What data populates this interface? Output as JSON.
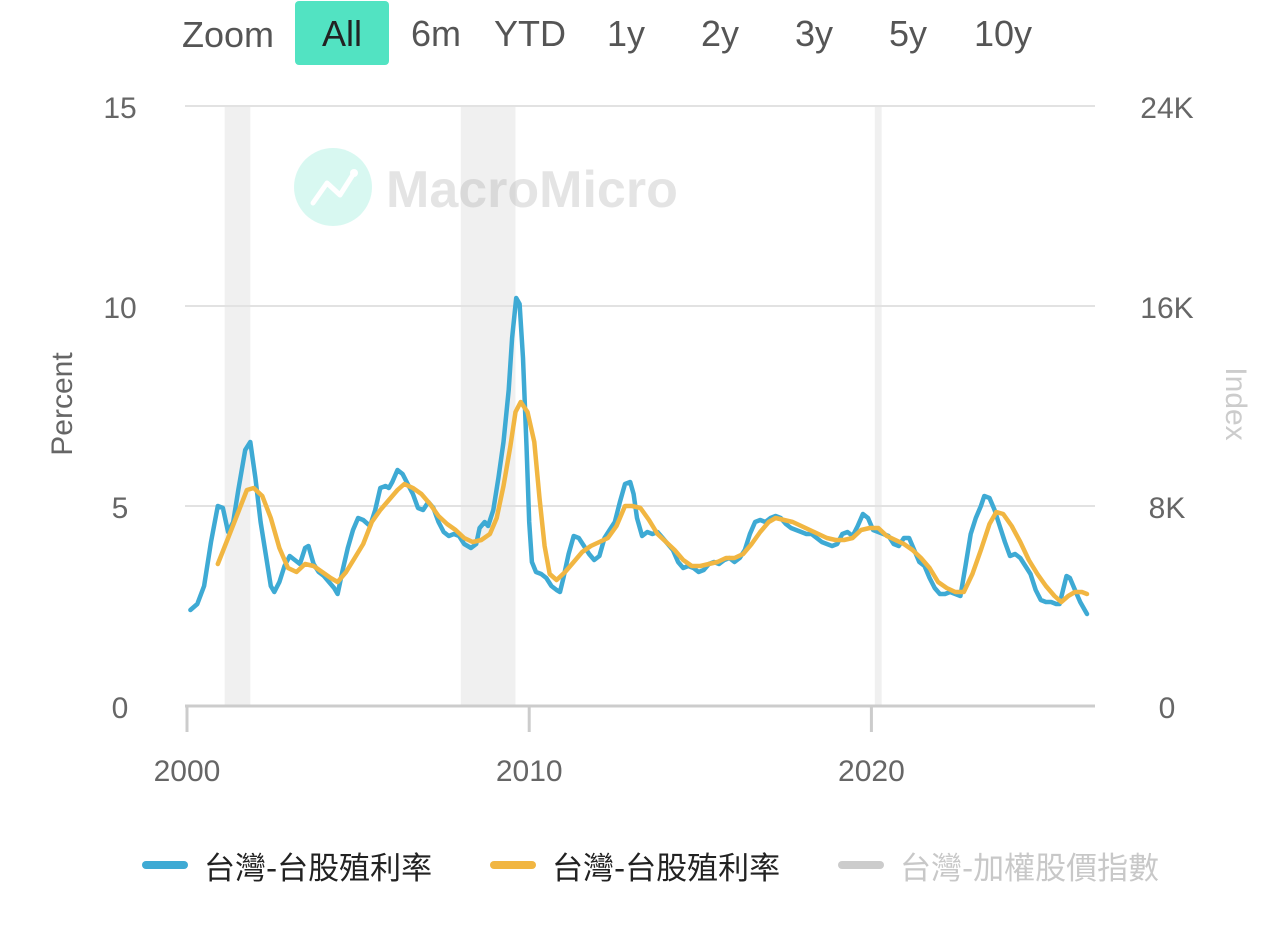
{
  "zoom": {
    "label": "Zoom",
    "buttons": [
      {
        "label": "All",
        "active": true
      },
      {
        "label": "6m",
        "active": false
      },
      {
        "label": "YTD",
        "active": false
      },
      {
        "label": "1y",
        "active": false
      },
      {
        "label": "2y",
        "active": false
      },
      {
        "label": "3y",
        "active": false
      },
      {
        "label": "5y",
        "active": false
      },
      {
        "label": "10y",
        "active": false
      }
    ]
  },
  "watermark": "MacroMicro",
  "colors": {
    "accent": "#52e3c2",
    "series_blue": "#3eaad4",
    "series_orange": "#f1b642",
    "series_grey": "#cccccc",
    "recession_band": "#f0f0f0",
    "grid": "#e2e2e2"
  },
  "chart_data": {
    "type": "line",
    "left_axis": {
      "label": "Percent",
      "ticks": [
        "0",
        "5",
        "10",
        "15"
      ],
      "range": [
        0,
        15
      ]
    },
    "right_axis": {
      "label": "Index",
      "ticks": [
        "0",
        "8K",
        "16K",
        "24K"
      ],
      "range": [
        0,
        24000
      ]
    },
    "x_axis": {
      "ticks": [
        "2000",
        "2010",
        "2020"
      ],
      "range": [
        2000.0,
        2026.3
      ]
    },
    "recession_bands": [
      [
        2001.1,
        2001.85
      ],
      [
        2008.0,
        2009.6
      ],
      [
        2020.1,
        2020.3
      ]
    ],
    "legend_placement": "bottom",
    "series": [
      {
        "name": "台灣-台股殖利率",
        "color": "#3eaad4",
        "visible": true,
        "points": [
          [
            2000.1,
            2.4
          ],
          [
            2000.3,
            2.55
          ],
          [
            2000.5,
            3.0
          ],
          [
            2000.7,
            4.1
          ],
          [
            2000.9,
            5.0
          ],
          [
            2001.05,
            4.95
          ],
          [
            2001.2,
            4.35
          ],
          [
            2001.35,
            4.6
          ],
          [
            2001.5,
            5.4
          ],
          [
            2001.7,
            6.4
          ],
          [
            2001.85,
            6.6
          ],
          [
            2002.0,
            5.7
          ],
          [
            2002.15,
            4.6
          ],
          [
            2002.3,
            3.8
          ],
          [
            2002.45,
            3.0
          ],
          [
            2002.55,
            2.85
          ],
          [
            2002.7,
            3.1
          ],
          [
            2002.85,
            3.5
          ],
          [
            2003.0,
            3.75
          ],
          [
            2003.15,
            3.65
          ],
          [
            2003.3,
            3.55
          ],
          [
            2003.45,
            3.95
          ],
          [
            2003.55,
            4.0
          ],
          [
            2003.7,
            3.55
          ],
          [
            2003.85,
            3.35
          ],
          [
            2004.0,
            3.25
          ],
          [
            2004.15,
            3.1
          ],
          [
            2004.3,
            2.95
          ],
          [
            2004.4,
            2.8
          ],
          [
            2004.55,
            3.4
          ],
          [
            2004.7,
            3.95
          ],
          [
            2004.85,
            4.4
          ],
          [
            2005.0,
            4.7
          ],
          [
            2005.15,
            4.65
          ],
          [
            2005.35,
            4.5
          ],
          [
            2005.5,
            4.9
          ],
          [
            2005.65,
            5.45
          ],
          [
            2005.8,
            5.5
          ],
          [
            2005.9,
            5.45
          ],
          [
            2006.0,
            5.6
          ],
          [
            2006.15,
            5.9
          ],
          [
            2006.3,
            5.8
          ],
          [
            2006.45,
            5.55
          ],
          [
            2006.6,
            5.3
          ],
          [
            2006.75,
            4.95
          ],
          [
            2006.9,
            4.9
          ],
          [
            2007.05,
            5.1
          ],
          [
            2007.2,
            4.95
          ],
          [
            2007.35,
            4.6
          ],
          [
            2007.5,
            4.35
          ],
          [
            2007.65,
            4.25
          ],
          [
            2007.8,
            4.3
          ],
          [
            2007.95,
            4.25
          ],
          [
            2008.1,
            4.05
          ],
          [
            2008.3,
            3.95
          ],
          [
            2008.45,
            4.05
          ],
          [
            2008.55,
            4.45
          ],
          [
            2008.7,
            4.6
          ],
          [
            2008.8,
            4.5
          ],
          [
            2008.95,
            4.9
          ],
          [
            2009.1,
            5.7
          ],
          [
            2009.25,
            6.6
          ],
          [
            2009.4,
            7.9
          ],
          [
            2009.5,
            9.2
          ],
          [
            2009.62,
            10.2
          ],
          [
            2009.72,
            10.05
          ],
          [
            2009.82,
            8.7
          ],
          [
            2009.92,
            6.5
          ],
          [
            2010.0,
            4.6
          ],
          [
            2010.08,
            3.6
          ],
          [
            2010.2,
            3.35
          ],
          [
            2010.35,
            3.3
          ],
          [
            2010.5,
            3.2
          ],
          [
            2010.65,
            3.0
          ],
          [
            2010.8,
            2.9
          ],
          [
            2010.9,
            2.85
          ],
          [
            2011.0,
            3.2
          ],
          [
            2011.15,
            3.8
          ],
          [
            2011.3,
            4.25
          ],
          [
            2011.45,
            4.2
          ],
          [
            2011.6,
            4.0
          ],
          [
            2011.75,
            3.8
          ],
          [
            2011.9,
            3.65
          ],
          [
            2012.05,
            3.75
          ],
          [
            2012.2,
            4.2
          ],
          [
            2012.35,
            4.4
          ],
          [
            2012.5,
            4.6
          ],
          [
            2012.65,
            5.1
          ],
          [
            2012.8,
            5.55
          ],
          [
            2012.95,
            5.6
          ],
          [
            2013.05,
            5.3
          ],
          [
            2013.15,
            4.7
          ],
          [
            2013.3,
            4.25
          ],
          [
            2013.45,
            4.35
          ],
          [
            2013.6,
            4.3
          ],
          [
            2013.75,
            4.35
          ],
          [
            2013.9,
            4.2
          ],
          [
            2014.05,
            4.05
          ],
          [
            2014.2,
            3.9
          ],
          [
            2014.35,
            3.6
          ],
          [
            2014.5,
            3.45
          ],
          [
            2014.65,
            3.5
          ],
          [
            2014.8,
            3.45
          ],
          [
            2014.95,
            3.35
          ],
          [
            2015.1,
            3.4
          ],
          [
            2015.25,
            3.55
          ],
          [
            2015.4,
            3.6
          ],
          [
            2015.55,
            3.55
          ],
          [
            2015.7,
            3.65
          ],
          [
            2015.85,
            3.7
          ],
          [
            2016.0,
            3.6
          ],
          [
            2016.15,
            3.7
          ],
          [
            2016.3,
            3.9
          ],
          [
            2016.45,
            4.3
          ],
          [
            2016.6,
            4.6
          ],
          [
            2016.75,
            4.65
          ],
          [
            2016.9,
            4.6
          ],
          [
            2017.05,
            4.7
          ],
          [
            2017.2,
            4.75
          ],
          [
            2017.35,
            4.7
          ],
          [
            2017.5,
            4.55
          ],
          [
            2017.65,
            4.45
          ],
          [
            2017.8,
            4.4
          ],
          [
            2017.95,
            4.35
          ],
          [
            2018.1,
            4.3
          ],
          [
            2018.25,
            4.3
          ],
          [
            2018.4,
            4.2
          ],
          [
            2018.55,
            4.1
          ],
          [
            2018.7,
            4.05
          ],
          [
            2018.85,
            4.0
          ],
          [
            2019.0,
            4.05
          ],
          [
            2019.15,
            4.3
          ],
          [
            2019.3,
            4.35
          ],
          [
            2019.45,
            4.25
          ],
          [
            2019.6,
            4.5
          ],
          [
            2019.75,
            4.8
          ],
          [
            2019.9,
            4.7
          ],
          [
            2020.05,
            4.4
          ],
          [
            2020.2,
            4.35
          ],
          [
            2020.35,
            4.3
          ],
          [
            2020.5,
            4.25
          ],
          [
            2020.65,
            4.05
          ],
          [
            2020.8,
            4.0
          ],
          [
            2020.95,
            4.2
          ],
          [
            2021.1,
            4.2
          ],
          [
            2021.25,
            3.9
          ],
          [
            2021.4,
            3.6
          ],
          [
            2021.55,
            3.5
          ],
          [
            2021.7,
            3.2
          ],
          [
            2021.85,
            2.95
          ],
          [
            2022.0,
            2.8
          ],
          [
            2022.15,
            2.8
          ],
          [
            2022.3,
            2.85
          ],
          [
            2022.45,
            2.8
          ],
          [
            2022.6,
            2.75
          ],
          [
            2022.75,
            3.5
          ],
          [
            2022.9,
            4.3
          ],
          [
            2023.05,
            4.7
          ],
          [
            2023.2,
            5.0
          ],
          [
            2023.3,
            5.25
          ],
          [
            2023.45,
            5.2
          ],
          [
            2023.6,
            4.9
          ],
          [
            2023.75,
            4.5
          ],
          [
            2023.9,
            4.1
          ],
          [
            2024.05,
            3.75
          ],
          [
            2024.2,
            3.8
          ],
          [
            2024.35,
            3.7
          ],
          [
            2024.5,
            3.5
          ],
          [
            2024.65,
            3.3
          ],
          [
            2024.8,
            2.9
          ],
          [
            2024.95,
            2.65
          ],
          [
            2025.1,
            2.6
          ],
          [
            2025.25,
            2.6
          ],
          [
            2025.4,
            2.55
          ],
          [
            2025.5,
            2.55
          ],
          [
            2025.6,
            2.9
          ],
          [
            2025.7,
            3.25
          ],
          [
            2025.8,
            3.2
          ],
          [
            2025.95,
            2.9
          ],
          [
            2026.1,
            2.6
          ],
          [
            2026.2,
            2.45
          ],
          [
            2026.3,
            2.3
          ]
        ]
      },
      {
        "name": "台灣-台股殖利率",
        "color": "#f1b642",
        "visible": true,
        "points": [
          [
            2000.9,
            3.55
          ],
          [
            2001.2,
            4.2
          ],
          [
            2001.5,
            4.85
          ],
          [
            2001.75,
            5.4
          ],
          [
            2001.95,
            5.45
          ],
          [
            2002.2,
            5.25
          ],
          [
            2002.45,
            4.7
          ],
          [
            2002.7,
            3.95
          ],
          [
            2002.95,
            3.45
          ],
          [
            2003.2,
            3.35
          ],
          [
            2003.45,
            3.55
          ],
          [
            2003.7,
            3.5
          ],
          [
            2003.95,
            3.35
          ],
          [
            2004.2,
            3.2
          ],
          [
            2004.4,
            3.1
          ],
          [
            2004.65,
            3.35
          ],
          [
            2004.9,
            3.7
          ],
          [
            2005.15,
            4.05
          ],
          [
            2005.4,
            4.6
          ],
          [
            2005.65,
            4.9
          ],
          [
            2005.9,
            5.15
          ],
          [
            2006.15,
            5.4
          ],
          [
            2006.35,
            5.55
          ],
          [
            2006.6,
            5.45
          ],
          [
            2006.85,
            5.3
          ],
          [
            2007.1,
            5.05
          ],
          [
            2007.35,
            4.75
          ],
          [
            2007.6,
            4.55
          ],
          [
            2007.85,
            4.4
          ],
          [
            2008.1,
            4.2
          ],
          [
            2008.35,
            4.1
          ],
          [
            2008.6,
            4.15
          ],
          [
            2008.85,
            4.3
          ],
          [
            2009.05,
            4.7
          ],
          [
            2009.25,
            5.5
          ],
          [
            2009.45,
            6.5
          ],
          [
            2009.6,
            7.35
          ],
          [
            2009.75,
            7.6
          ],
          [
            2009.95,
            7.35
          ],
          [
            2010.15,
            6.6
          ],
          [
            2010.3,
            5.2
          ],
          [
            2010.45,
            4.0
          ],
          [
            2010.6,
            3.3
          ],
          [
            2010.8,
            3.15
          ],
          [
            2011.05,
            3.35
          ],
          [
            2011.3,
            3.6
          ],
          [
            2011.55,
            3.85
          ],
          [
            2011.8,
            4.0
          ],
          [
            2012.05,
            4.1
          ],
          [
            2012.3,
            4.2
          ],
          [
            2012.55,
            4.5
          ],
          [
            2012.8,
            5.0
          ],
          [
            2013.0,
            5.0
          ],
          [
            2013.25,
            4.95
          ],
          [
            2013.5,
            4.65
          ],
          [
            2013.75,
            4.3
          ],
          [
            2014.0,
            4.1
          ],
          [
            2014.25,
            3.9
          ],
          [
            2014.5,
            3.65
          ],
          [
            2014.75,
            3.5
          ],
          [
            2015.0,
            3.5
          ],
          [
            2015.25,
            3.55
          ],
          [
            2015.5,
            3.6
          ],
          [
            2015.75,
            3.7
          ],
          [
            2016.0,
            3.7
          ],
          [
            2016.25,
            3.8
          ],
          [
            2016.5,
            4.05
          ],
          [
            2016.75,
            4.35
          ],
          [
            2017.0,
            4.6
          ],
          [
            2017.2,
            4.7
          ],
          [
            2017.45,
            4.65
          ],
          [
            2017.7,
            4.6
          ],
          [
            2017.95,
            4.5
          ],
          [
            2018.2,
            4.4
          ],
          [
            2018.45,
            4.3
          ],
          [
            2018.7,
            4.2
          ],
          [
            2018.95,
            4.15
          ],
          [
            2019.2,
            4.15
          ],
          [
            2019.45,
            4.2
          ],
          [
            2019.7,
            4.4
          ],
          [
            2019.95,
            4.45
          ],
          [
            2020.2,
            4.45
          ],
          [
            2020.45,
            4.25
          ],
          [
            2020.7,
            4.15
          ],
          [
            2020.95,
            4.05
          ],
          [
            2021.2,
            3.9
          ],
          [
            2021.45,
            3.7
          ],
          [
            2021.7,
            3.45
          ],
          [
            2021.95,
            3.1
          ],
          [
            2022.2,
            2.95
          ],
          [
            2022.45,
            2.85
          ],
          [
            2022.7,
            2.85
          ],
          [
            2022.95,
            3.3
          ],
          [
            2023.2,
            3.9
          ],
          [
            2023.45,
            4.55
          ],
          [
            2023.65,
            4.85
          ],
          [
            2023.85,
            4.8
          ],
          [
            2024.1,
            4.5
          ],
          [
            2024.35,
            4.1
          ],
          [
            2024.6,
            3.65
          ],
          [
            2024.85,
            3.3
          ],
          [
            2025.1,
            3.0
          ],
          [
            2025.35,
            2.75
          ],
          [
            2025.55,
            2.6
          ],
          [
            2025.75,
            2.75
          ],
          [
            2025.95,
            2.85
          ],
          [
            2026.15,
            2.85
          ],
          [
            2026.3,
            2.8
          ]
        ]
      },
      {
        "name": "台灣-加權股價指數",
        "color": "#cccccc",
        "visible": false,
        "points": []
      }
    ]
  }
}
